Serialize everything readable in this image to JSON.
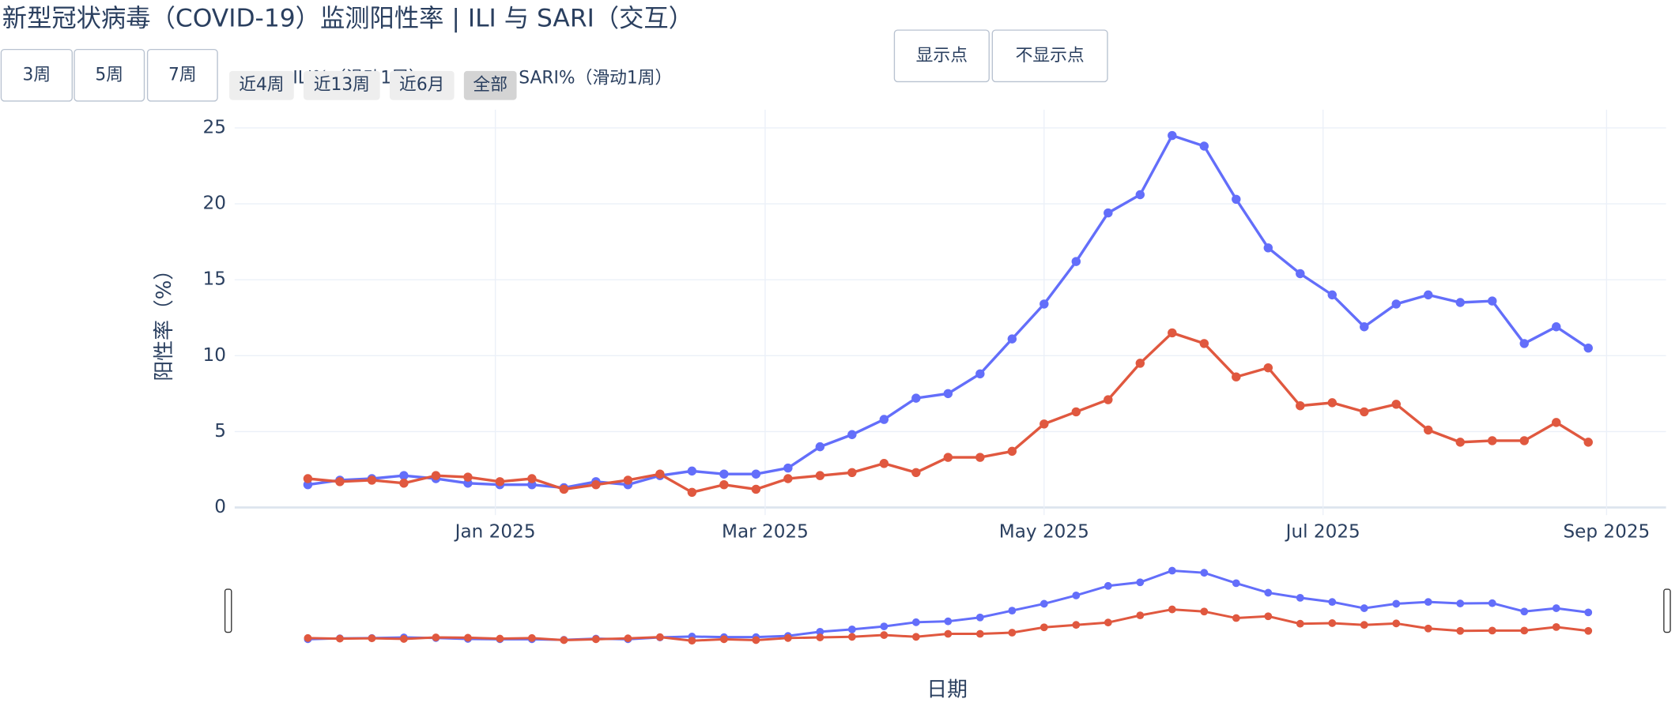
{
  "chart_data": {
    "type": "line",
    "title": "新型冠状病毒（COVID-19）监测阳性率 | ILI 与 SARI（交互）",
    "x_label": "日期",
    "y_label": "阳性率（%）",
    "x": [
      "2024-11-21",
      "2024-11-28",
      "2024-12-05",
      "2024-12-12",
      "2024-12-19",
      "2024-12-26",
      "2025-01-02",
      "2025-01-09",
      "2025-01-16",
      "2025-01-23",
      "2025-01-30",
      "2025-02-06",
      "2025-02-13",
      "2025-02-20",
      "2025-02-27",
      "2025-03-06",
      "2025-03-13",
      "2025-03-20",
      "2025-03-27",
      "2025-04-03",
      "2025-04-10",
      "2025-04-17",
      "2025-04-24",
      "2025-05-01",
      "2025-05-08",
      "2025-05-15",
      "2025-05-22",
      "2025-05-29",
      "2025-06-05",
      "2025-06-12",
      "2025-06-19",
      "2025-06-26",
      "2025-07-03",
      "2025-07-10",
      "2025-07-17",
      "2025-07-24",
      "2025-07-31",
      "2025-08-07",
      "2025-08-14",
      "2025-08-21",
      "2025-08-28"
    ],
    "series": [
      {
        "name": "ILI%（滑动1周）",
        "color": "#636efa",
        "values": [
          1.5,
          1.8,
          1.9,
          2.1,
          1.9,
          1.6,
          1.5,
          1.5,
          1.3,
          1.7,
          1.5,
          2.1,
          2.4,
          2.2,
          2.2,
          2.6,
          4.0,
          4.8,
          5.8,
          7.2,
          7.5,
          8.8,
          11.1,
          13.4,
          16.2,
          19.4,
          20.6,
          24.5,
          23.8,
          20.3,
          17.1,
          15.4,
          14.0,
          11.9,
          13.4,
          14.0,
          13.5,
          13.6,
          10.8,
          11.9,
          10.5
        ]
      },
      {
        "name": "SARI%（滑动1周）",
        "color": "#e0583f",
        "values": [
          1.9,
          1.7,
          1.8,
          1.6,
          2.1,
          2.0,
          1.7,
          1.9,
          1.2,
          1.5,
          1.8,
          2.2,
          1.0,
          1.5,
          1.2,
          1.9,
          2.1,
          2.3,
          2.9,
          2.3,
          3.3,
          3.3,
          3.7,
          5.5,
          6.3,
          7.1,
          9.5,
          11.5,
          10.8,
          8.6,
          9.2,
          6.7,
          6.9,
          6.3,
          6.8,
          5.1,
          4.3,
          4.4,
          4.4,
          5.6,
          4.3
        ]
      }
    ],
    "xlim": [
      "2024-11-05",
      "2025-09-14"
    ],
    "ylim": [
      -0.5,
      26.2
    ],
    "xticks": [
      {
        "value": "2025-01-01",
        "label": "Jan 2025"
      },
      {
        "value": "2025-03-01",
        "label": "Mar 2025"
      },
      {
        "value": "2025-05-01",
        "label": "May 2025"
      },
      {
        "value": "2025-07-01",
        "label": "Jul 2025"
      },
      {
        "value": "2025-09-01",
        "label": "Sep 2025"
      }
    ],
    "yticks": [
      0,
      5,
      10,
      15,
      20,
      25
    ],
    "grid": true,
    "markers": true,
    "rangeslider": true
  },
  "controls": {
    "window_buttons": [
      "3周",
      "5周",
      "7周"
    ],
    "marker_buttons": [
      "显示点",
      "不显示点"
    ],
    "range_buttons": [
      "近4周",
      "近13周",
      "近6月",
      "全部"
    ]
  }
}
